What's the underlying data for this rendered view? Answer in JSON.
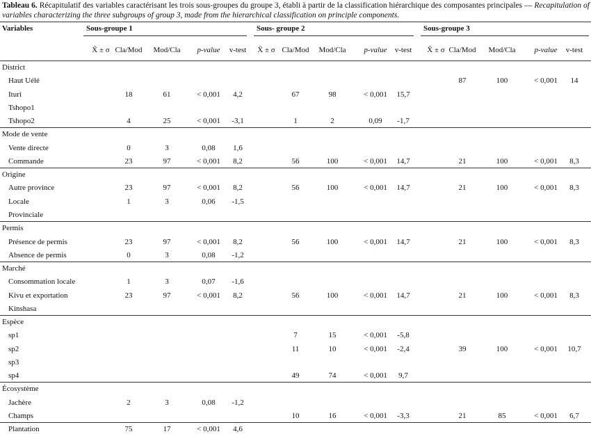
{
  "caption": {
    "label": "Tableau 6.",
    "french": "Récapitulatif des variables caractérisant les trois sous-groupes  du groupe 3, établi à partir de la classification hiérarchique des composantes principales —",
    "english": "Recapitulation of variables characterizing the three subgroups of group 3, made from the hierarchical classification on principle components."
  },
  "header": {
    "variables": "Variables",
    "groups": [
      "Sous-groupe 1",
      "Sous- groupe 2",
      "Sous-groupe 3"
    ],
    "columns": [
      "X̄ ± σ",
      "Cla/Mod",
      "Mod/Cla",
      "p-value",
      "v-test"
    ]
  },
  "sections": [
    {
      "name": "District",
      "rows": [
        {
          "label": "Haut Uélé",
          "values": [
            null,
            null,
            null,
            null,
            null,
            null,
            null,
            null,
            "87",
            "100",
            "< 0,001",
            "14"
          ]
        },
        {
          "label": "Ituri",
          "values": [
            "18",
            "61",
            "< 0,001",
            "4,2",
            "67",
            "98",
            "< 0,001",
            "15,7",
            null,
            null,
            null,
            null
          ]
        },
        {
          "label": "Tshopo1",
          "values": [
            null,
            null,
            null,
            null,
            null,
            null,
            null,
            null,
            null,
            null,
            null,
            null
          ]
        },
        {
          "label": "Tshopo2",
          "values": [
            "4",
            "25",
            "< 0,001",
            "-3,1",
            "1",
            "2",
            "0,09",
            "-1,7",
            null,
            null,
            null,
            null
          ]
        }
      ]
    },
    {
      "name": "Mode de vente",
      "rows": [
        {
          "label": "Vente directe",
          "values": [
            "0",
            "3",
            "0,08",
            "1,6",
            null,
            null,
            null,
            null,
            null,
            null,
            null,
            null
          ]
        },
        {
          "label": "Commande",
          "values": [
            "23",
            "97",
            "< 0,001",
            "8,2",
            "56",
            "100",
            "< 0,001",
            "14,7",
            "21",
            "100",
            "< 0,001",
            "8,3"
          ]
        }
      ]
    },
    {
      "name": "Origine",
      "rows": [
        {
          "label": "Autre province",
          "values": [
            "23",
            "97",
            "< 0,001",
            "8,2",
            "56",
            "100",
            "< 0,001",
            "14,7",
            "21",
            "100",
            "< 0,001",
            "8,3"
          ]
        },
        {
          "label": "Locale",
          "values": [
            "1",
            "3",
            "0,06",
            "-1,5",
            null,
            null,
            null,
            null,
            null,
            null,
            null,
            null
          ]
        },
        {
          "label": "Provinciale",
          "values": [
            null,
            null,
            null,
            null,
            null,
            null,
            null,
            null,
            null,
            null,
            null,
            null
          ]
        }
      ]
    },
    {
      "name": "Permis",
      "rows": [
        {
          "label": "Présence de permis",
          "values": [
            "23",
            "97",
            "< 0,001",
            "8,2",
            "56",
            "100",
            "< 0,001",
            "14,7",
            "21",
            "100",
            "< 0,001",
            "8,3"
          ]
        },
        {
          "label": "Absence de permis",
          "values": [
            "0",
            "3",
            "0,08",
            "-1,2",
            null,
            null,
            null,
            null,
            null,
            null,
            null,
            null
          ]
        }
      ]
    },
    {
      "name": "Marché",
      "rows": [
        {
          "label": "Consommation locale",
          "values": [
            "1",
            "3",
            "0,07",
            "-1,6",
            null,
            null,
            null,
            null,
            null,
            null,
            null,
            null
          ]
        },
        {
          "label": "Kivu et exportation",
          "values": [
            "23",
            "97",
            "< 0,001",
            "8,2",
            "56",
            "100",
            "< 0,001",
            "14,7",
            "21",
            "100",
            "< 0,001",
            "8,3"
          ]
        },
        {
          "label": "Kinshasa",
          "values": [
            null,
            null,
            null,
            null,
            null,
            null,
            null,
            null,
            null,
            null,
            null,
            null
          ]
        }
      ]
    },
    {
      "name": "Espèce",
      "rows": [
        {
          "label": "sp1",
          "values": [
            null,
            null,
            null,
            null,
            "7",
            "15",
            "< 0,001",
            "-5,8",
            null,
            null,
            null,
            null
          ]
        },
        {
          "label": "sp2",
          "values": [
            null,
            null,
            null,
            null,
            "11",
            "10",
            "< 0,001",
            "-2,4",
            "39",
            "100",
            "< 0,001",
            "10,7"
          ]
        },
        {
          "label": "sp3",
          "values": [
            null,
            null,
            null,
            null,
            null,
            null,
            null,
            null,
            null,
            null,
            null,
            null
          ]
        },
        {
          "label": "sp4",
          "values": [
            null,
            null,
            null,
            null,
            "49",
            "74",
            "< 0,001",
            "9,7",
            null,
            null,
            null,
            null
          ]
        }
      ]
    },
    {
      "name": "Écosystème",
      "rows": [
        {
          "label": "Jachère",
          "values": [
            "2",
            "3",
            "0,08",
            "-1,2",
            null,
            null,
            null,
            null,
            null,
            null,
            null,
            null
          ]
        },
        {
          "label": "Champs",
          "values": [
            null,
            null,
            null,
            null,
            "10",
            "16",
            "< 0,001",
            "-3,3",
            "21",
            "85",
            "< 0,001",
            "6,7"
          ]
        },
        {
          "label": "Plantation",
          "values": [
            "75",
            "17",
            "< 0,001",
            "4,6",
            null,
            null,
            null,
            null,
            null,
            null,
            null,
            null
          ]
        }
      ]
    }
  ]
}
